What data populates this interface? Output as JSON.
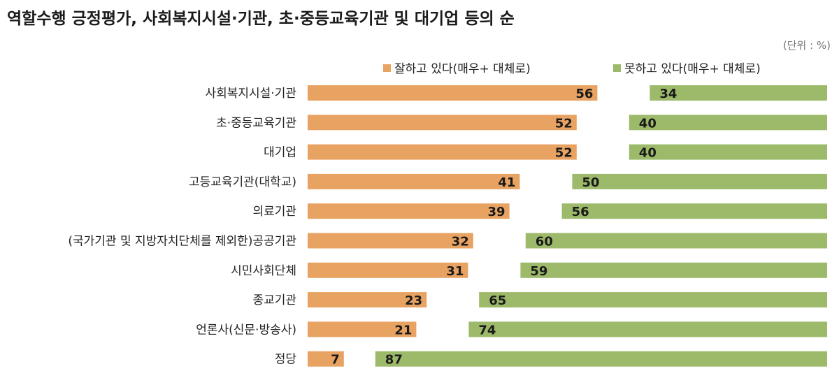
{
  "chart_data": {
    "type": "bar",
    "title": "역할수행 긍정평가, 사회복지시설·기관, 초·중등교육기관 및 대기업 등의 순",
    "unit_note": "(단위 : %)",
    "categories": [
      "사회복지시설·기관",
      "초·중등교육기관",
      "대기업",
      "고등교육기관(대학교)",
      "의료기관",
      "(국가기관 및 지방자치단체를 제외한)공공기관",
      "시민사회단체",
      "종교기관",
      "언론사(신문·방송사)",
      "정당"
    ],
    "series": [
      {
        "name": "잘하고 있다(매우+ 대체로)",
        "color": "#E8A262",
        "values": [
          56,
          52,
          52,
          41,
          39,
          32,
          31,
          23,
          21,
          7
        ]
      },
      {
        "name": "못하고 있다(매우+ 대체로)",
        "color": "#9DBA6A",
        "values": [
          34,
          40,
          40,
          50,
          56,
          60,
          59,
          65,
          74,
          87
        ]
      }
    ],
    "legend_position": "top-right",
    "grid": false
  }
}
